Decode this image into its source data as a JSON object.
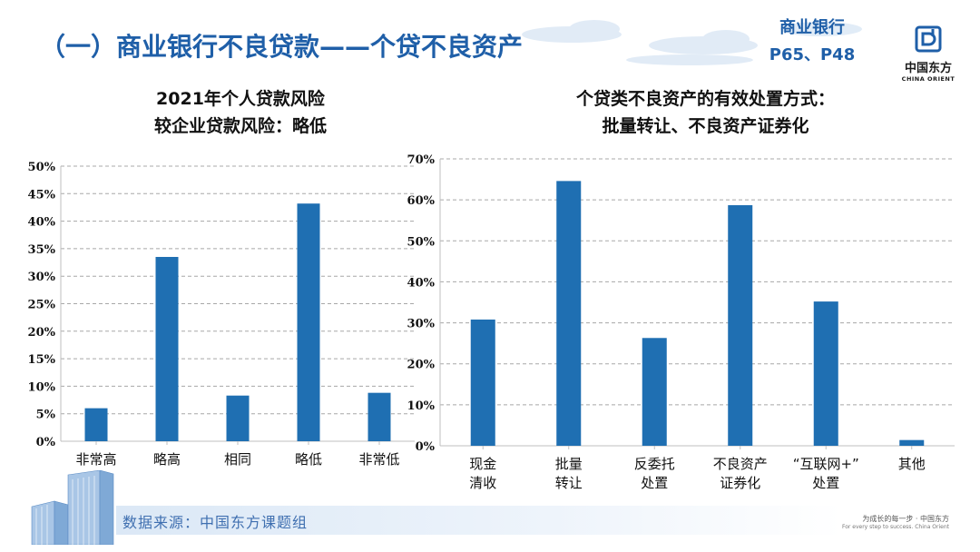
{
  "header": {
    "title": "（一）商业银行不良贷款——个贷不良资产",
    "source_ref_line1": "商业银行",
    "source_ref_line2": "P65、P48"
  },
  "logo": {
    "name": "中国东方",
    "en": "CHINA ORIENT"
  },
  "chart_data": [
    {
      "type": "bar",
      "title_line1": "2021年个人贷款风险",
      "title_line2": "较企业贷款风险：略低",
      "categories": [
        "非常高",
        "略高",
        "相同",
        "略低",
        "非常低"
      ],
      "values": [
        6,
        33.5,
        8.3,
        43.2,
        8.8
      ],
      "ylim": [
        0,
        50
      ],
      "yticks": [
        0,
        5,
        10,
        15,
        20,
        25,
        30,
        35,
        40,
        45,
        50
      ],
      "ytick_labels": [
        "0%",
        "5%",
        "10%",
        "15%",
        "20%",
        "25%",
        "30%",
        "35%",
        "40%",
        "45%",
        "50%"
      ],
      "xlabel": "",
      "ylabel": "",
      "grid": "dashed-horizontal",
      "color": "#1f6fb2"
    },
    {
      "type": "bar",
      "title_line1": "个贷类不良资产的有效处置方式：",
      "title_line2": "批量转让、不良资产证券化",
      "categories": [
        [
          "现金",
          "清收"
        ],
        [
          "批量",
          "转让"
        ],
        [
          "反委托",
          "处置"
        ],
        [
          "不良资产",
          "证券化"
        ],
        [
          "“互联网+”",
          "处置"
        ],
        [
          "其他"
        ]
      ],
      "values": [
        30.8,
        64.6,
        26.3,
        58.7,
        35.2,
        1.4
      ],
      "ylim": [
        0,
        70
      ],
      "yticks": [
        0,
        10,
        20,
        30,
        40,
        50,
        60,
        70
      ],
      "ytick_labels": [
        "0%",
        "10%",
        "20%",
        "30%",
        "40%",
        "50%",
        "60%",
        "70%"
      ],
      "xlabel": "",
      "ylabel": "",
      "grid": "dashed-horizontal",
      "color": "#1f6fb2"
    }
  ],
  "footer": {
    "source": "数据来源：中国东方课题组",
    "slogan_cn": "为成长的每一步 · 中国东方",
    "slogan_en": "For every step to success. China Orient"
  }
}
